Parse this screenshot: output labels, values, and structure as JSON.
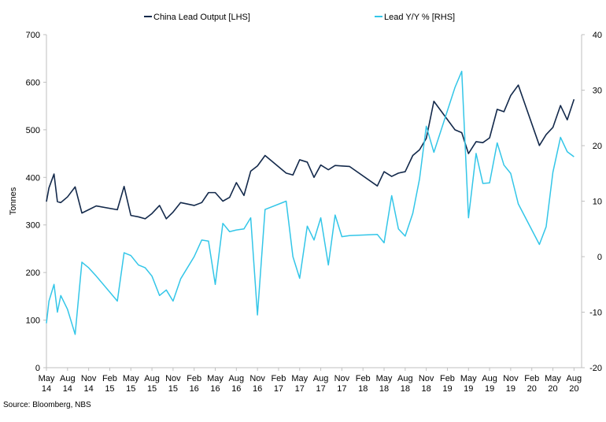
{
  "chart_data": {
    "type": "line",
    "dual_axis": true,
    "ylabel_left": "Tonnes",
    "ylim_left": [
      0,
      700
    ],
    "yticks_left": [
      "0",
      "100",
      "200",
      "300",
      "400",
      "500",
      "600",
      "700"
    ],
    "ylim_right": [
      -20,
      40
    ],
    "yticks_right": [
      "-20",
      "-10",
      "0",
      "10",
      "20",
      "30",
      "40"
    ],
    "xlim": [
      2014.33,
      2020.67
    ],
    "xticks": [
      {
        "month": "May",
        "year": "14",
        "x": 2014.33
      },
      {
        "month": "Aug",
        "year": "14",
        "x": 2014.58
      },
      {
        "month": "Nov",
        "year": "14",
        "x": 2014.83
      },
      {
        "month": "Feb",
        "year": "15",
        "x": 2015.08
      },
      {
        "month": "May",
        "year": "15",
        "x": 2015.33
      },
      {
        "month": "Aug",
        "year": "15",
        "x": 2015.58
      },
      {
        "month": "Nov",
        "year": "15",
        "x": 2015.83
      },
      {
        "month": "Feb",
        "year": "16",
        "x": 2016.08
      },
      {
        "month": "May",
        "year": "16",
        "x": 2016.33
      },
      {
        "month": "Aug",
        "year": "16",
        "x": 2016.58
      },
      {
        "month": "Nov",
        "year": "16",
        "x": 2016.83
      },
      {
        "month": "Feb",
        "year": "17",
        "x": 2017.08
      },
      {
        "month": "May",
        "year": "17",
        "x": 2017.33
      },
      {
        "month": "Aug",
        "year": "17",
        "x": 2017.58
      },
      {
        "month": "Nov",
        "year": "17",
        "x": 2017.83
      },
      {
        "month": "Feb",
        "year": "18",
        "x": 2018.08
      },
      {
        "month": "May",
        "year": "18",
        "x": 2018.33
      },
      {
        "month": "Aug",
        "year": "18",
        "x": 2018.58
      },
      {
        "month": "Nov",
        "year": "18",
        "x": 2018.83
      },
      {
        "month": "Feb",
        "year": "19",
        "x": 2019.08
      },
      {
        "month": "May",
        "year": "19",
        "x": 2019.33
      },
      {
        "month": "Aug",
        "year": "19",
        "x": 2019.58
      },
      {
        "month": "Nov",
        "year": "19",
        "x": 2019.83
      },
      {
        "month": "Feb",
        "year": "20",
        "x": 2020.08
      },
      {
        "month": "May",
        "year": "20",
        "x": 2020.33
      },
      {
        "month": "Aug",
        "year": "20",
        "x": 2020.58
      }
    ],
    "legend_position": "top",
    "series": [
      {
        "name": "China Lead Output [LHS]",
        "axis": "left",
        "color": "#13294b",
        "x": [
          2014.33,
          2014.36,
          2014.42,
          2014.46,
          2014.5,
          2014.58,
          2014.67,
          2014.75,
          2014.83,
          2014.92,
          2015.17,
          2015.25,
          2015.33,
          2015.42,
          2015.5,
          2015.58,
          2015.67,
          2015.75,
          2015.83,
          2015.92,
          2016.08,
          2016.17,
          2016.25,
          2016.33,
          2016.42,
          2016.5,
          2016.58,
          2016.67,
          2016.75,
          2016.83,
          2016.92,
          2017.17,
          2017.25,
          2017.33,
          2017.42,
          2017.5,
          2017.58,
          2017.67,
          2017.75,
          2017.83,
          2017.92,
          2018.25,
          2018.33,
          2018.42,
          2018.5,
          2018.58,
          2018.67,
          2018.75,
          2018.83,
          2018.92,
          2019.17,
          2019.25,
          2019.33,
          2019.42,
          2019.5,
          2019.58,
          2019.67,
          2019.75,
          2019.83,
          2019.92,
          2020.17,
          2020.25,
          2020.33,
          2020.42,
          2020.5,
          2020.58
        ],
        "values": [
          349,
          378,
          407,
          349,
          347,
          359,
          380,
          325,
          332,
          340,
          332,
          381,
          320,
          317,
          313,
          324,
          341,
          313,
          327,
          347,
          341,
          347,
          368,
          368,
          350,
          358,
          389,
          362,
          413,
          424,
          446,
          409,
          405,
          437,
          432,
          400,
          426,
          416,
          425,
          424,
          423,
          382,
          412,
          402,
          409,
          412,
          446,
          458,
          482,
          560,
          500,
          494,
          450,
          475,
          473,
          483,
          543,
          538,
          572,
          594,
          467,
          490,
          505,
          551,
          521,
          564
        ]
      },
      {
        "name": "Lead Y/Y % [RHS]",
        "axis": "right",
        "color": "#33c6e8",
        "x": [
          2014.33,
          2014.36,
          2014.42,
          2014.46,
          2014.5,
          2014.58,
          2014.67,
          2014.75,
          2014.83,
          2014.92,
          2015.17,
          2015.25,
          2015.33,
          2015.42,
          2015.5,
          2015.58,
          2015.67,
          2015.75,
          2015.83,
          2015.92,
          2016.08,
          2016.17,
          2016.25,
          2016.33,
          2016.42,
          2016.5,
          2016.58,
          2016.67,
          2016.75,
          2016.83,
          2016.92,
          2017.17,
          2017.25,
          2017.33,
          2017.42,
          2017.5,
          2017.58,
          2017.67,
          2017.75,
          2017.83,
          2017.92,
          2018.25,
          2018.33,
          2018.42,
          2018.5,
          2018.58,
          2018.67,
          2018.75,
          2018.83,
          2018.92,
          2019.17,
          2019.25,
          2019.33,
          2019.42,
          2019.5,
          2019.58,
          2019.67,
          2019.75,
          2019.83,
          2019.92,
          2020.17,
          2020.25,
          2020.33,
          2020.42,
          2020.5,
          2020.58
        ],
        "values": [
          -12,
          -8,
          -5,
          -10,
          -7,
          -9.5,
          -14,
          -1,
          -2,
          -3.5,
          -8,
          0.7,
          0.2,
          -1.5,
          -2,
          -3.5,
          -7,
          -6,
          -8,
          -4,
          0,
          3,
          2.8,
          -5,
          6,
          4.5,
          4.8,
          5,
          7,
          -10.5,
          8.5,
          10,
          0,
          -3.9,
          5.5,
          3,
          7,
          -1.5,
          7.5,
          3.6,
          3.8,
          4,
          2.5,
          11,
          5,
          3.7,
          7.8,
          14,
          23.5,
          18.8,
          30.5,
          33.4,
          7,
          18.6,
          13.2,
          13.3,
          20.5,
          16.5,
          15,
          9.5,
          2.2,
          5.4,
          15.2,
          21.5,
          18.9,
          18
        ]
      }
    ]
  },
  "source": "Source: Bloomberg, NBS"
}
